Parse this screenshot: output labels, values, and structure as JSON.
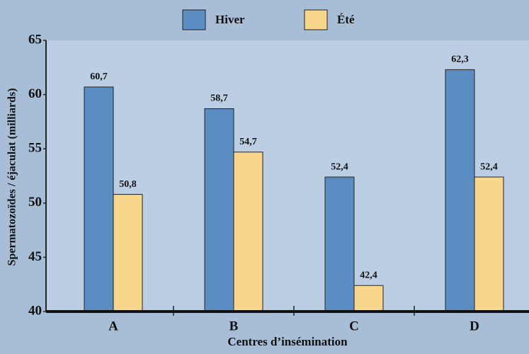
{
  "chart_data": {
    "type": "bar",
    "y_label": "Spermatozoïdes / éjaculat (milliards)",
    "x_label": "Centres d’insémination",
    "categories": [
      "A",
      "B",
      "C",
      "D"
    ],
    "series": [
      {
        "name": "Hiver",
        "color": "#5b8cc2",
        "values": [
          60.7,
          58.7,
          52.4,
          62.3
        ],
        "value_labels": [
          "60,7",
          "58,7",
          "52,4",
          "62,3"
        ]
      },
      {
        "name": "Été",
        "color": "#f8d68c",
        "values": [
          50.8,
          54.7,
          42.4,
          52.4
        ],
        "value_labels": [
          "50,8",
          "54,7",
          "42,4",
          "52,4"
        ]
      }
    ],
    "ylim": [
      40,
      65
    ],
    "yticks": [
      40,
      45,
      50,
      55,
      60,
      65
    ],
    "grid": false,
    "legend": "top"
  }
}
